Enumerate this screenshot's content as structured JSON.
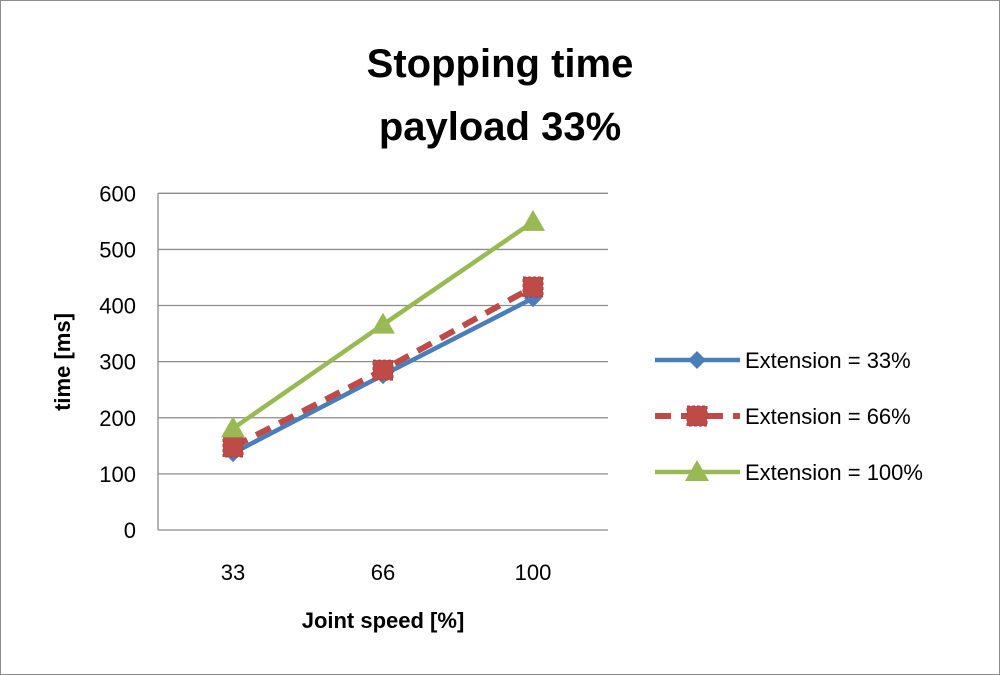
{
  "chart_data": {
    "type": "line",
    "title": "Stopping time",
    "subtitle": "payload 33%",
    "xlabel": "Joint speed [%]",
    "ylabel": "time [ms]",
    "categories": [
      "33",
      "66",
      "100"
    ],
    "ylim": [
      0,
      600
    ],
    "yticks": [
      0,
      100,
      200,
      300,
      400,
      500,
      600
    ],
    "grid": "horizontal",
    "legend": "right",
    "series": [
      {
        "name": "Extension = 33%",
        "values": [
          137,
          276,
          413
        ],
        "color": "#4a7ebb",
        "marker": "diamond",
        "dash": "solid"
      },
      {
        "name": "Extension = 66%",
        "values": [
          148,
          285,
          433
        ],
        "color": "#be4b48",
        "marker": "square",
        "dash": "dashed"
      },
      {
        "name": "Extension = 100%",
        "values": [
          181,
          366,
          549
        ],
        "color": "#98b954",
        "marker": "triangle",
        "dash": "solid"
      }
    ]
  }
}
